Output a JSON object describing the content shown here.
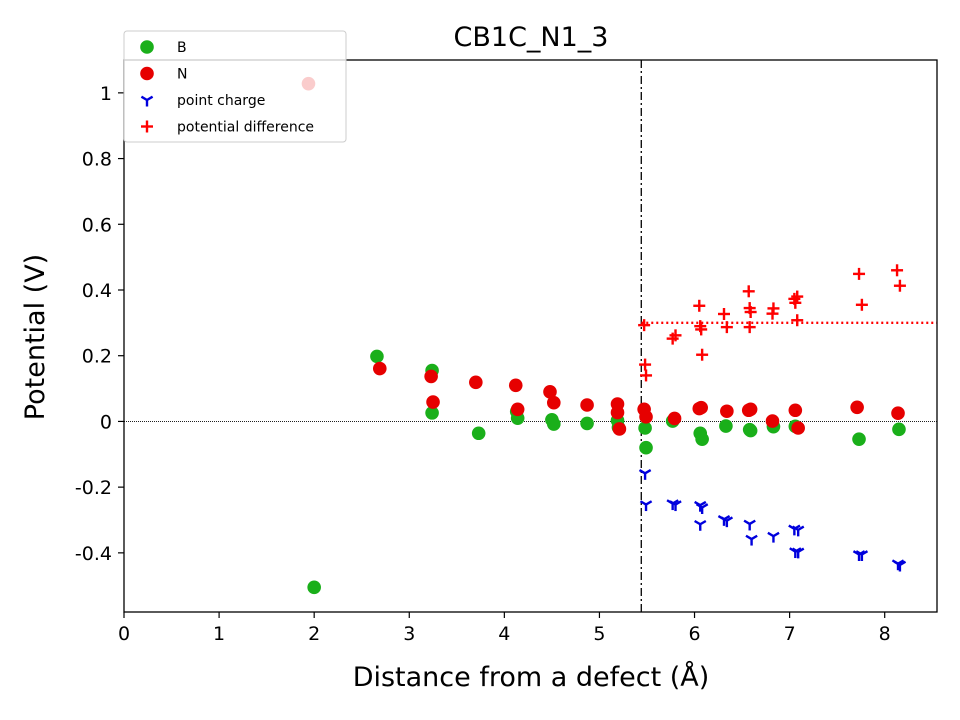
{
  "chart_data": {
    "type": "scatter",
    "title": "CB1C_N1_3",
    "xlabel": "Distance from a defect (Å)",
    "ylabel": "Potential (V)",
    "xlim": [
      0,
      8.55
    ],
    "ylim": [
      -0.58,
      1.1
    ],
    "xticks": [
      0,
      1,
      2,
      3,
      4,
      5,
      6,
      7,
      8
    ],
    "xtick_labels": [
      "0",
      "1",
      "2",
      "3",
      "4",
      "5",
      "6",
      "7",
      "8"
    ],
    "yticks": [
      -0.4,
      -0.2,
      0,
      0.2,
      0.4,
      0.6,
      0.8,
      1
    ],
    "ytick_labels": [
      "-0.4",
      "-0.2",
      "0",
      "0.2",
      "0.4",
      "0.6",
      "0.8",
      "1"
    ],
    "vline_x": 5.44,
    "hline_y": 0,
    "avg_line": {
      "y": 0.3,
      "x_start": 5.44,
      "color": "#ff0000"
    },
    "legend_position": "upper-left",
    "series": [
      {
        "name": "B",
        "marker": "circle",
        "color": "#1aaf1a",
        "points": [
          [
            2.0,
            -0.505
          ],
          [
            2.66,
            0.198
          ],
          [
            3.24,
            0.155
          ],
          [
            3.24,
            0.026
          ],
          [
            3.73,
            -0.036
          ],
          [
            4.13,
            0.03
          ],
          [
            4.14,
            0.01
          ],
          [
            4.5,
            0.005
          ],
          [
            4.52,
            -0.008
          ],
          [
            4.87,
            -0.006
          ],
          [
            5.19,
            0.003
          ],
          [
            5.2,
            -0.018
          ],
          [
            5.48,
            -0.02
          ],
          [
            5.49,
            -0.08
          ],
          [
            5.77,
            0.001
          ],
          [
            6.06,
            -0.036
          ],
          [
            6.08,
            -0.054
          ],
          [
            6.33,
            -0.014
          ],
          [
            6.58,
            -0.025
          ],
          [
            6.59,
            -0.028
          ],
          [
            6.83,
            -0.016
          ],
          [
            7.06,
            -0.015
          ],
          [
            7.73,
            -0.054
          ],
          [
            8.15,
            -0.024
          ]
        ]
      },
      {
        "name": "N",
        "marker": "circle",
        "color": "#e60000",
        "points": [
          [
            1.94,
            1.028
          ],
          [
            2.69,
            0.161
          ],
          [
            3.23,
            0.137
          ],
          [
            3.25,
            0.059
          ],
          [
            3.7,
            0.119
          ],
          [
            4.12,
            0.11
          ],
          [
            4.14,
            0.037
          ],
          [
            4.48,
            0.09
          ],
          [
            4.52,
            0.057
          ],
          [
            4.87,
            0.05
          ],
          [
            5.19,
            0.053
          ],
          [
            5.19,
            0.027
          ],
          [
            5.21,
            -0.023
          ],
          [
            5.47,
            0.037
          ],
          [
            5.49,
            0.014
          ],
          [
            5.79,
            0.009
          ],
          [
            6.05,
            0.039
          ],
          [
            6.07,
            0.042
          ],
          [
            6.34,
            0.031
          ],
          [
            6.57,
            0.034
          ],
          [
            6.59,
            0.037
          ],
          [
            6.82,
            0.001
          ],
          [
            7.06,
            0.034
          ],
          [
            7.09,
            -0.02
          ],
          [
            7.71,
            0.043
          ],
          [
            8.14,
            0.025
          ]
        ]
      },
      {
        "name": "point charge",
        "marker": "tri",
        "color": "#0000dd",
        "points": [
          [
            5.48,
            -0.158
          ],
          [
            5.49,
            -0.253
          ],
          [
            5.77,
            -0.25
          ],
          [
            5.8,
            -0.253
          ],
          [
            6.06,
            -0.255
          ],
          [
            6.08,
            -0.262
          ],
          [
            6.06,
            -0.313
          ],
          [
            6.31,
            -0.298
          ],
          [
            6.34,
            -0.302
          ],
          [
            6.58,
            -0.312
          ],
          [
            6.6,
            -0.358
          ],
          [
            6.83,
            -0.349
          ],
          [
            7.05,
            -0.327
          ],
          [
            7.09,
            -0.33
          ],
          [
            7.06,
            -0.396
          ],
          [
            7.09,
            -0.397
          ],
          [
            7.73,
            -0.405
          ],
          [
            7.76,
            -0.405
          ],
          [
            8.14,
            -0.433
          ],
          [
            8.16,
            -0.437
          ]
        ]
      },
      {
        "name": "potential difference",
        "marker": "plus",
        "color": "#ff0000",
        "points": [
          [
            5.47,
            0.293
          ],
          [
            5.48,
            0.173
          ],
          [
            5.49,
            0.14
          ],
          [
            5.77,
            0.252
          ],
          [
            5.8,
            0.262
          ],
          [
            6.05,
            0.352
          ],
          [
            6.06,
            0.29
          ],
          [
            6.07,
            0.28
          ],
          [
            6.08,
            0.203
          ],
          [
            6.31,
            0.327
          ],
          [
            6.34,
            0.287
          ],
          [
            6.57,
            0.396
          ],
          [
            6.58,
            0.345
          ],
          [
            6.59,
            0.333
          ],
          [
            6.58,
            0.287
          ],
          [
            6.83,
            0.344
          ],
          [
            6.82,
            0.328
          ],
          [
            7.05,
            0.373
          ],
          [
            7.08,
            0.38
          ],
          [
            7.06,
            0.361
          ],
          [
            7.08,
            0.308
          ],
          [
            7.73,
            0.449
          ],
          [
            7.76,
            0.355
          ],
          [
            8.13,
            0.46
          ],
          [
            8.16,
            0.413
          ]
        ]
      }
    ]
  }
}
